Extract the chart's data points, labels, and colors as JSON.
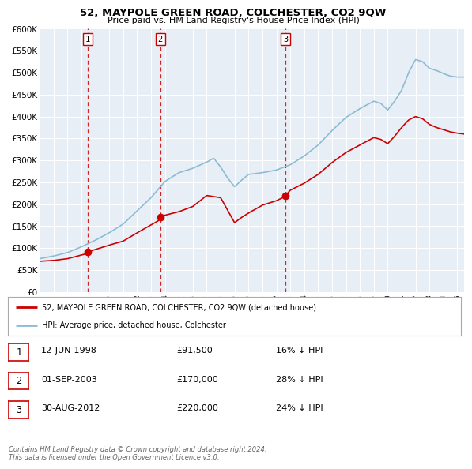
{
  "title": "52, MAYPOLE GREEN ROAD, COLCHESTER, CO2 9QW",
  "subtitle": "Price paid vs. HM Land Registry's House Price Index (HPI)",
  "ylim": [
    0,
    600000
  ],
  "yticks": [
    0,
    50000,
    100000,
    150000,
    200000,
    250000,
    300000,
    350000,
    400000,
    450000,
    500000,
    550000,
    600000
  ],
  "ytick_labels": [
    "£0",
    "£50K",
    "£100K",
    "£150K",
    "£200K",
    "£250K",
    "£300K",
    "£350K",
    "£400K",
    "£450K",
    "£500K",
    "£550K",
    "£600K"
  ],
  "background_color": "#ffffff",
  "plot_bg_color": "#e8eef5",
  "grid_color": "#ffffff",
  "sale_color": "#cc0000",
  "hpi_color": "#8bbcd4",
  "vline_color": "#cc0000",
  "title_fontsize": 9.5,
  "subtitle_fontsize": 8.0,
  "purchases": [
    {
      "label": "1",
      "date_num": 1998.45,
      "price": 91500
    },
    {
      "label": "2",
      "date_num": 2003.67,
      "price": 170000
    },
    {
      "label": "3",
      "date_num": 2012.66,
      "price": 220000
    }
  ],
  "legend_entries": [
    {
      "label": "52, MAYPOLE GREEN ROAD, COLCHESTER, CO2 9QW (detached house)",
      "color": "#cc0000"
    },
    {
      "label": "HPI: Average price, detached house, Colchester",
      "color": "#8bbcd4"
    }
  ],
  "table_rows": [
    {
      "num": "1",
      "date": "12-JUN-1998",
      "price": "£91,500",
      "pct": "16% ↓ HPI"
    },
    {
      "num": "2",
      "date": "01-SEP-2003",
      "price": "£170,000",
      "pct": "28% ↓ HPI"
    },
    {
      "num": "3",
      "date": "30-AUG-2012",
      "price": "£220,000",
      "pct": "24% ↓ HPI"
    }
  ],
  "footer": "Contains HM Land Registry data © Crown copyright and database right 2024.\nThis data is licensed under the Open Government Licence v3.0.",
  "xmin": 1995,
  "xmax": 2025.5,
  "xticks": [
    1995,
    1996,
    1997,
    1998,
    1999,
    2000,
    2001,
    2002,
    2003,
    2004,
    2005,
    2006,
    2007,
    2008,
    2009,
    2010,
    2011,
    2012,
    2013,
    2014,
    2015,
    2016,
    2017,
    2018,
    2019,
    2020,
    2021,
    2022,
    2023,
    2024,
    2025
  ]
}
